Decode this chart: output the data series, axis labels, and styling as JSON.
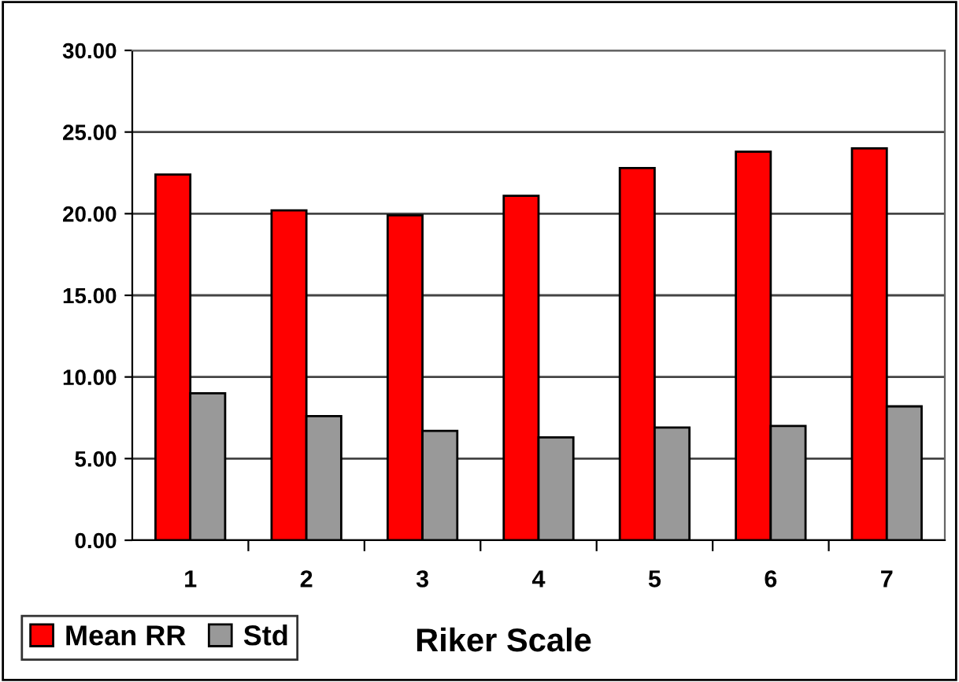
{
  "chart_data": {
    "type": "bar",
    "xlabel": "Riker Scale",
    "categories": [
      "1",
      "2",
      "3",
      "4",
      "5",
      "6",
      "7"
    ],
    "series": [
      {
        "name": "Mean RR",
        "color": "#ff0000",
        "values": [
          22.4,
          20.2,
          19.9,
          21.1,
          22.8,
          23.8,
          24.0
        ]
      },
      {
        "name": "Std",
        "color": "#999999",
        "values": [
          9.0,
          7.6,
          6.7,
          6.3,
          6.9,
          7.0,
          8.2
        ]
      }
    ],
    "ylim": [
      0,
      30
    ],
    "yticks": [
      {
        "value": 0,
        "label": "0.00"
      },
      {
        "value": 5,
        "label": "5.00"
      },
      {
        "value": 10,
        "label": "10.00"
      },
      {
        "value": 15,
        "label": "15.00"
      },
      {
        "value": 20,
        "label": "20.00"
      },
      {
        "value": 25,
        "label": "25.00"
      },
      {
        "value": 30,
        "label": "30.00"
      }
    ],
    "grid": "y",
    "legend": "bottom left"
  }
}
